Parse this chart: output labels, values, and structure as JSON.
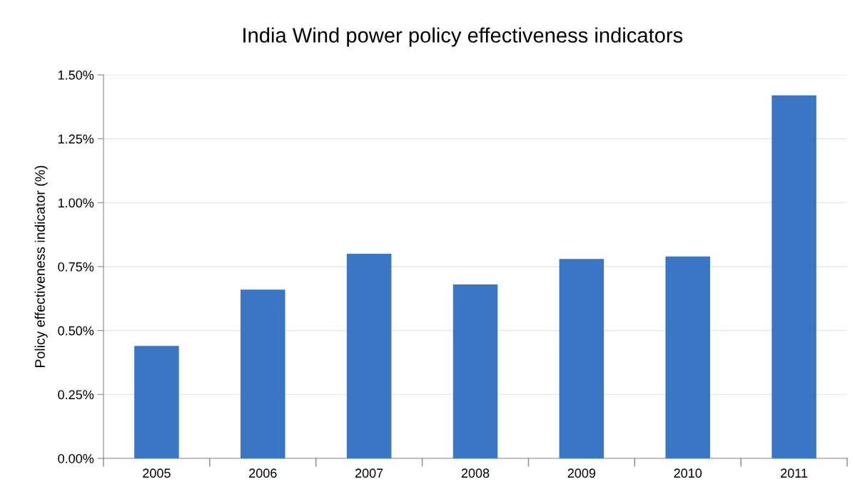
{
  "chart_data": {
    "type": "bar",
    "title": "India Wind power policy effectiveness indicators",
    "ylabel": "Policy effectiveness indicator (%)",
    "categories": [
      "2005",
      "2006",
      "2007",
      "2008",
      "2009",
      "2010",
      "2011"
    ],
    "values": [
      0.44,
      0.66,
      0.8,
      0.68,
      0.78,
      0.79,
      1.42
    ],
    "color": "#3a76c4",
    "ylim": [
      0,
      1.5
    ],
    "yticks": [
      {
        "value": 0,
        "label": "0.00%"
      },
      {
        "value": 0.25,
        "label": "0.25%"
      },
      {
        "value": 0.5,
        "label": "0.50%"
      },
      {
        "value": 0.75,
        "label": "0.75%"
      },
      {
        "value": 1.0,
        "label": "1.00%"
      },
      {
        "value": 1.25,
        "label": "1.25%"
      },
      {
        "value": 1.5,
        "label": "1.50%"
      }
    ],
    "grid": "y",
    "legend": false
  }
}
